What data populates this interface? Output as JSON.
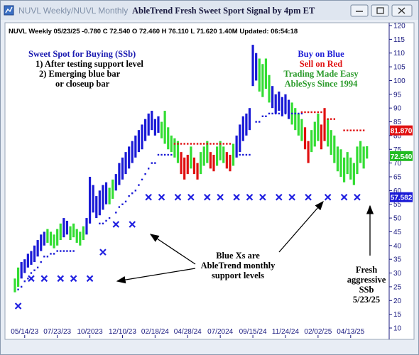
{
  "window": {
    "tabs": "NUVL Weekly/NUVL Monthly"
  },
  "chart_data": {
    "type": "ohlc",
    "title": "AbleTrend Fresh Sweet Sport Signal by 4pm ET",
    "info": "NUVL  Weekly 05/23/25 -0.780 C 72.540 O 72.460 H 76.110 L 71.620 1.40M Updated: 06:54:18",
    "ylim": [
      10,
      120
    ],
    "yticks": [
      10,
      15,
      20,
      25,
      30,
      35,
      40,
      45,
      50,
      55,
      60,
      65,
      70,
      75,
      80,
      85,
      90,
      95,
      100,
      105,
      110,
      115,
      120
    ],
    "xticks": [
      {
        "value": 3,
        "label": "05/14/23"
      },
      {
        "value": 13,
        "label": "07/23/23"
      },
      {
        "value": 23,
        "label": "10/2023"
      },
      {
        "value": 33,
        "label": "12/10/23"
      },
      {
        "value": 43,
        "label": "02/18/24"
      },
      {
        "value": 53,
        "label": "04/28/24"
      },
      {
        "value": 63,
        "label": "07/2024"
      },
      {
        "value": 73,
        "label": "09/15/24"
      },
      {
        "value": 83,
        "label": "11/24/24"
      },
      {
        "value": 93,
        "label": "02/02/25"
      },
      {
        "value": 103,
        "label": "04/13/25"
      }
    ],
    "trend_colors": [
      "#1a1ad6",
      "#33dd33",
      "#e01010"
    ],
    "support_color": "#1a1ad6",
    "resistance_color": "#e01010",
    "x_color": "#2020e0",
    "low": [
      23,
      25,
      28,
      30,
      32,
      33,
      34,
      36,
      38,
      40,
      41,
      40,
      39,
      40,
      42,
      43,
      44,
      42,
      43,
      41,
      40,
      42,
      44,
      48,
      52,
      50,
      51,
      53,
      55,
      55,
      57,
      60,
      62,
      64,
      66,
      68,
      70,
      72,
      74,
      75,
      78,
      80,
      82,
      80,
      81,
      79,
      77,
      75,
      74,
      72,
      70,
      66,
      64,
      66,
      68,
      66,
      64,
      66,
      69,
      70,
      68,
      67,
      69,
      71,
      70,
      68,
      67,
      69,
      72,
      74,
      78,
      80,
      82,
      98,
      100,
      96,
      94,
      97,
      92,
      90,
      88,
      89,
      87,
      88,
      86,
      84,
      82,
      80,
      78,
      75,
      70,
      74,
      76,
      78,
      75,
      78,
      76,
      73,
      70,
      67,
      65,
      63,
      66,
      64,
      62,
      66,
      70,
      68,
      71.62
    ],
    "high": [
      28,
      32,
      34,
      35,
      37,
      38,
      40,
      42,
      44,
      45,
      46,
      45,
      44,
      46,
      48,
      50,
      49,
      47,
      48,
      46,
      45,
      47,
      50,
      65,
      62,
      58,
      60,
      62,
      63,
      61,
      64,
      66,
      70,
      72,
      74,
      76,
      78,
      80,
      82,
      84,
      86,
      88,
      89,
      86,
      87,
      85,
      89,
      83,
      80,
      79,
      78,
      74,
      72,
      73,
      76,
      72,
      70,
      74,
      76,
      78,
      74,
      73,
      76,
      78,
      76,
      74,
      73,
      77,
      80,
      84,
      87,
      88,
      90,
      113,
      110,
      108,
      106,
      108,
      102,
      98,
      95,
      96,
      94,
      95,
      93,
      92,
      90,
      88,
      86,
      83,
      78,
      82,
      85,
      88,
      84,
      90,
      86,
      82,
      80,
      76,
      75,
      72,
      74,
      72,
      70,
      76,
      78,
      76,
      76.11
    ],
    "trend": [
      1,
      1,
      0,
      0,
      0,
      0,
      0,
      0,
      0,
      0,
      1,
      1,
      1,
      1,
      1,
      0,
      0,
      1,
      1,
      1,
      1,
      1,
      0,
      0,
      0,
      0,
      0,
      0,
      0,
      1,
      1,
      0,
      0,
      0,
      0,
      0,
      0,
      0,
      0,
      0,
      0,
      0,
      0,
      0,
      0,
      1,
      1,
      1,
      1,
      1,
      1,
      2,
      2,
      2,
      1,
      2,
      2,
      1,
      1,
      1,
      2,
      2,
      1,
      1,
      1,
      2,
      2,
      1,
      0,
      0,
      0,
      0,
      0,
      0,
      0,
      1,
      1,
      1,
      1,
      0,
      0,
      0,
      0,
      0,
      0,
      1,
      1,
      1,
      1,
      2,
      2,
      1,
      1,
      1,
      2,
      2,
      1,
      1,
      1,
      1,
      1,
      1,
      1,
      1,
      1,
      1,
      1,
      1,
      1
    ],
    "support": [
      null,
      24,
      25,
      27,
      28,
      30,
      31,
      32,
      34,
      36,
      36,
      37,
      37,
      38,
      38,
      38,
      38,
      38,
      38,
      null,
      null,
      null,
      null,
      null,
      null,
      null,
      48,
      48,
      49,
      50,
      null,
      52,
      54,
      55,
      56,
      58,
      59,
      60,
      62,
      64,
      66,
      68,
      70,
      70,
      73,
      73,
      73,
      73,
      73,
      null,
      null,
      null,
      null,
      null,
      null,
      null,
      null,
      null,
      null,
      null,
      null,
      null,
      null,
      null,
      null,
      null,
      null,
      null,
      null,
      73,
      73,
      73,
      73,
      null,
      85,
      85,
      87,
      87,
      88,
      88,
      88,
      88,
      88,
      88,
      88,
      88,
      88,
      88,
      88,
      null,
      null,
      null,
      null,
      null,
      null,
      null,
      null,
      null,
      null,
      null,
      null,
      null,
      null,
      null,
      null,
      null,
      null,
      null,
      null
    ],
    "resistance": [
      null,
      null,
      null,
      null,
      null,
      null,
      null,
      null,
      null,
      null,
      null,
      null,
      null,
      null,
      null,
      null,
      null,
      null,
      null,
      null,
      null,
      null,
      null,
      null,
      null,
      null,
      null,
      null,
      null,
      null,
      null,
      null,
      null,
      null,
      null,
      null,
      null,
      null,
      null,
      null,
      null,
      null,
      null,
      null,
      null,
      null,
      null,
      null,
      null,
      77,
      77,
      77,
      77,
      77,
      77,
      77,
      77,
      77,
      77,
      77,
      77,
      77,
      77,
      77,
      77,
      77,
      77,
      null,
      null,
      null,
      null,
      null,
      null,
      null,
      null,
      null,
      null,
      null,
      null,
      null,
      null,
      null,
      null,
      null,
      null,
      null,
      null,
      null,
      88.5,
      88.5,
      88.5,
      88.5,
      88.5,
      88.5,
      88.5,
      86,
      86,
      86,
      86,
      null,
      null,
      81.87,
      81.87,
      81.87,
      81.87,
      81.87,
      81.87,
      81.87,
      null
    ],
    "monthly_support": [
      null,
      18,
      null,
      null,
      null,
      28,
      null,
      null,
      null,
      28,
      null,
      null,
      null,
      null,
      28,
      null,
      null,
      null,
      28,
      null,
      null,
      null,
      null,
      28,
      null,
      null,
      null,
      37.6,
      null,
      null,
      null,
      47.7,
      null,
      null,
      null,
      null,
      47.7,
      null,
      null,
      null,
      null,
      57.582,
      null,
      null,
      null,
      57.582,
      null,
      null,
      null,
      null,
      57.582,
      null,
      null,
      null,
      57.582,
      null,
      null,
      null,
      null,
      57.582,
      null,
      null,
      null,
      57.582,
      null,
      null,
      null,
      null,
      57.582,
      null,
      null,
      null,
      57.582,
      null,
      null,
      null,
      57.582,
      null,
      null,
      null,
      null,
      57.582,
      null,
      null,
      null,
      57.582,
      null,
      null,
      null,
      null,
      57.582,
      null,
      null,
      null,
      null,
      null,
      57.582,
      null,
      null,
      null,
      null,
      57.582,
      null,
      null,
      null,
      57.582,
      null,
      null,
      null
    ],
    "price_labels": [
      {
        "value": 81.87,
        "label": "81.870",
        "color": "#e01010"
      },
      {
        "value": 72.54,
        "label": "72.540",
        "color": "#22bb22"
      },
      {
        "value": 57.582,
        "label": "57.582",
        "color": "#1a1ad6"
      }
    ],
    "annotations": {
      "sweet_spot": [
        "Sweet Spot for Buying (SSb)",
        "1) After testing support level",
        "2) Emerging blue bar",
        "or closeup bar"
      ],
      "legend": [
        "Buy on Blue",
        "Sell on Red",
        "Trading Made Easy",
        "AbleSys Since 1994"
      ],
      "xs_note": [
        "Blue Xs are",
        "AbleTrend monthly",
        "support levels"
      ],
      "fresh_note": [
        "Fresh",
        "aggressive",
        "SSb",
        "5/23/25"
      ]
    }
  }
}
